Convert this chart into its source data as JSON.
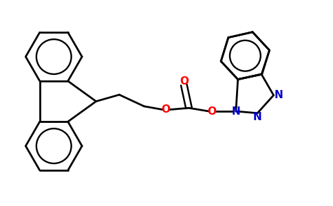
{
  "background_color": "#ffffff",
  "bond_color": "#000000",
  "bond_width": 2.0,
  "O_color": "#ff0000",
  "N_color": "#0000cc",
  "figsize": [
    4.84,
    3.0
  ],
  "dpi": 100,
  "xlim": [
    0.0,
    10.0
  ],
  "ylim": [
    0.0,
    6.2
  ]
}
